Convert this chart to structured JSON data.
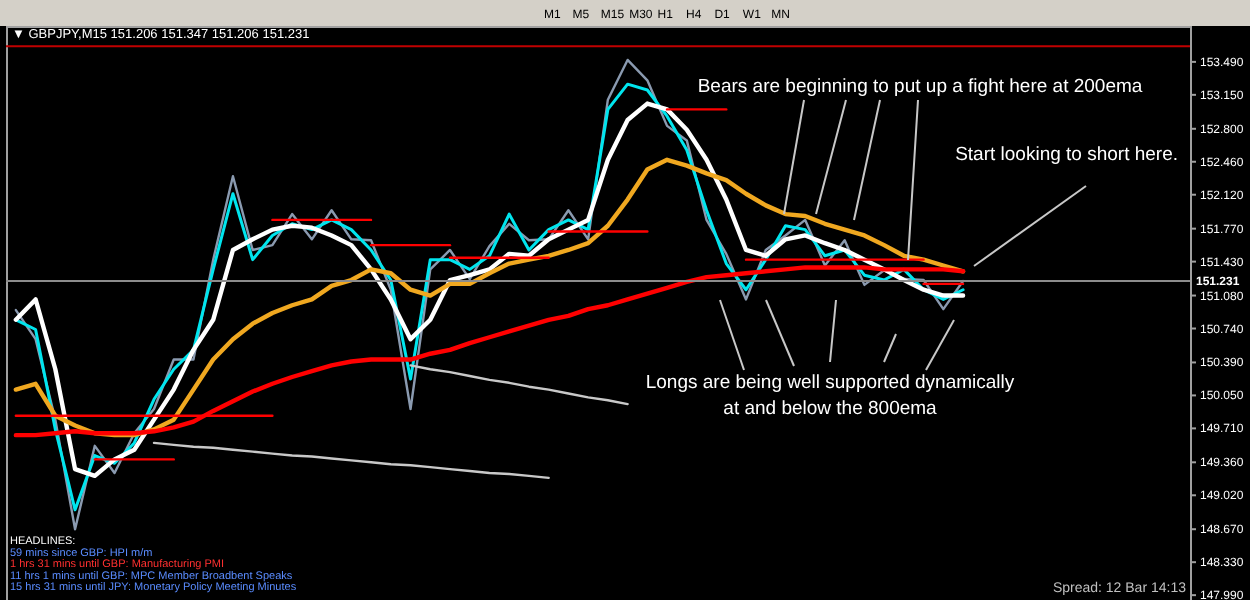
{
  "chart_data": {
    "type": "line",
    "title": "▼ GBPJPY,M15 151.206 151.347 151.206 151.231",
    "categories": [
      null,
      null,
      null,
      null,
      null,
      null,
      null,
      null,
      null,
      null,
      null,
      null,
      null,
      null,
      null,
      null,
      null,
      null,
      null,
      null,
      null,
      null,
      null,
      null,
      null,
      null,
      null,
      null,
      null,
      null,
      null,
      null,
      null,
      null,
      null,
      null,
      null,
      null,
      null,
      null,
      null,
      null,
      null,
      null,
      null,
      null,
      null,
      null,
      null,
      null,
      null,
      null,
      null,
      null,
      null,
      null,
      null,
      null,
      null,
      null
    ],
    "series": [
      {
        "color": "#8a9ab0",
        "values": [
          150.93,
          150.63,
          149.8,
          148.67,
          149.53,
          149.25,
          149.66,
          149.91,
          150.42,
          150.42,
          151.45,
          152.31,
          151.55,
          151.6,
          151.92,
          151.66,
          151.96,
          151.66,
          151.65,
          151.14,
          149.91,
          151.35,
          151.55,
          151.25,
          151.59,
          151.82,
          151.65,
          151.66,
          151.96,
          151.66,
          153.1,
          153.51,
          153.3,
          152.83,
          152.68,
          151.86,
          151.51,
          151.04,
          151.55,
          151.7,
          151.86,
          151.39,
          151.65,
          151.19,
          151.34,
          151.25,
          151.24,
          150.94,
          151.23,
          null,
          null,
          null,
          null,
          null,
          null,
          null,
          null,
          null,
          null,
          null
        ]
      },
      {
        "color": "#00e5ee",
        "values": [
          150.83,
          150.73,
          149.7,
          148.87,
          149.43,
          149.35,
          149.56,
          150.01,
          150.32,
          150.52,
          151.35,
          152.13,
          151.45,
          151.7,
          151.82,
          151.76,
          151.86,
          151.76,
          151.55,
          151.24,
          150.22,
          151.45,
          151.45,
          151.35,
          151.49,
          151.92,
          151.55,
          151.76,
          151.86,
          151.76,
          153.0,
          153.26,
          153.2,
          152.93,
          152.58,
          151.96,
          151.41,
          151.14,
          151.45,
          151.8,
          151.76,
          151.49,
          151.55,
          151.29,
          151.24,
          151.35,
          151.14,
          151.04,
          151.14,
          null,
          null,
          null,
          null,
          null,
          null,
          null,
          null,
          null,
          null,
          null
        ]
      },
      {
        "color": "#ffffff",
        "values": [
          150.83,
          151.04,
          150.32,
          149.29,
          149.22,
          149.39,
          149.49,
          149.8,
          150.11,
          150.52,
          150.83,
          151.55,
          151.66,
          151.76,
          151.8,
          151.78,
          151.7,
          151.6,
          151.35,
          151.04,
          150.63,
          150.83,
          151.24,
          151.29,
          151.35,
          151.51,
          151.49,
          151.66,
          151.76,
          151.86,
          152.48,
          152.89,
          153.06,
          153.0,
          152.79,
          152.48,
          152.07,
          151.55,
          151.49,
          151.66,
          151.7,
          151.62,
          151.55,
          151.45,
          151.35,
          151.24,
          151.14,
          151.08,
          151.08,
          null,
          null,
          null,
          null,
          null,
          null,
          null,
          null,
          null,
          null,
          null
        ]
      },
      {
        "color": "#f0a820",
        "values": [
          150.11,
          150.17,
          149.84,
          149.74,
          149.66,
          149.64,
          149.64,
          149.7,
          149.8,
          150.11,
          150.42,
          150.63,
          150.79,
          150.9,
          150.98,
          151.04,
          151.18,
          151.24,
          151.35,
          151.31,
          151.14,
          151.08,
          151.2,
          151.2,
          151.31,
          151.41,
          151.45,
          151.49,
          151.55,
          151.62,
          151.8,
          152.07,
          152.38,
          152.48,
          152.42,
          152.34,
          152.27,
          152.13,
          152.01,
          151.92,
          151.9,
          151.82,
          151.76,
          151.7,
          151.6,
          151.49,
          151.45,
          151.39,
          151.33,
          null,
          null,
          null,
          null,
          null,
          null,
          null,
          null,
          null,
          null,
          null
        ]
      },
      {
        "color": "#ff0000",
        "values": [
          149.64,
          149.64,
          149.66,
          149.68,
          149.66,
          149.66,
          149.66,
          149.68,
          149.72,
          149.78,
          149.89,
          149.99,
          150.09,
          150.17,
          150.24,
          150.3,
          150.36,
          150.4,
          150.42,
          150.42,
          150.42,
          150.48,
          150.52,
          150.59,
          150.65,
          150.71,
          150.77,
          150.83,
          150.87,
          150.94,
          150.98,
          151.04,
          151.1,
          151.16,
          151.22,
          151.27,
          151.29,
          151.31,
          151.33,
          151.35,
          151.37,
          151.37,
          151.37,
          151.37,
          151.35,
          151.35,
          151.35,
          151.35,
          151.33,
          null,
          null,
          null,
          null,
          null,
          null,
          null,
          null,
          null,
          null,
          null
        ]
      },
      {
        "color": "#ff0000",
        "values": [
          149.84,
          149.84,
          149.84,
          149.84,
          149.84,
          149.84,
          149.84,
          149.84,
          149.84,
          149.84,
          149.84,
          149.84,
          149.84,
          149.84,
          null,
          null,
          null,
          null,
          null,
          null,
          null,
          null,
          null,
          null,
          null,
          null,
          null,
          null,
          null,
          null,
          null,
          null,
          null,
          null,
          null,
          null,
          null,
          null,
          null,
          null,
          null,
          null,
          null,
          null,
          null,
          null,
          null,
          null,
          null,
          null,
          null,
          null,
          null,
          null,
          null,
          null,
          null,
          null,
          null,
          null
        ]
      },
      {
        "color": "#ff0000",
        "values": [
          null,
          null,
          null,
          null,
          149.39,
          149.39,
          149.39,
          149.39,
          149.39,
          null,
          null,
          null,
          null,
          null,
          null,
          null,
          null,
          null,
          null,
          null,
          null,
          null,
          null,
          null,
          null,
          null,
          null,
          null,
          null,
          null,
          null,
          null,
          null,
          null,
          null,
          null,
          null,
          null,
          null,
          null,
          null,
          null,
          null,
          null,
          null,
          null,
          null,
          null,
          null,
          null,
          null,
          null,
          null,
          null,
          null,
          null,
          null,
          null,
          null,
          null
        ]
      },
      {
        "color": "#ff0000",
        "values": [
          null,
          null,
          null,
          null,
          null,
          null,
          null,
          null,
          null,
          null,
          null,
          null,
          null,
          151.86,
          151.86,
          151.86,
          151.86,
          151.86,
          151.86,
          null,
          null,
          null,
          null,
          null,
          null,
          null,
          null,
          null,
          null,
          null,
          null,
          null,
          null,
          null,
          null,
          null,
          null,
          null,
          null,
          null,
          null,
          null,
          null,
          null,
          null,
          null,
          null,
          null,
          null,
          null,
          null,
          null,
          null,
          null,
          null,
          null,
          null,
          null,
          null,
          null
        ]
      },
      {
        "color": "#ff0000",
        "values": [
          null,
          null,
          null,
          null,
          null,
          null,
          null,
          null,
          null,
          null,
          null,
          null,
          null,
          null,
          null,
          null,
          null,
          null,
          151.6,
          151.6,
          151.6,
          151.6,
          151.6,
          null,
          null,
          null,
          null,
          null,
          null,
          null,
          null,
          null,
          null,
          null,
          null,
          null,
          null,
          null,
          null,
          null,
          null,
          null,
          null,
          null,
          null,
          null,
          null,
          null,
          null,
          null,
          null,
          null,
          null,
          null,
          null,
          null,
          null,
          null,
          null,
          null
        ]
      },
      {
        "color": "#ff0000",
        "values": [
          null,
          null,
          null,
          null,
          null,
          null,
          null,
          null,
          null,
          null,
          null,
          null,
          null,
          null,
          null,
          null,
          null,
          null,
          null,
          null,
          null,
          null,
          151.47,
          151.47,
          151.47,
          151.47,
          151.47,
          151.47,
          null,
          null,
          null,
          null,
          null,
          null,
          null,
          null,
          null,
          null,
          null,
          null,
          null,
          null,
          null,
          null,
          null,
          null,
          null,
          null,
          null,
          null,
          null,
          null,
          null,
          null,
          null,
          null,
          null,
          null,
          null,
          null
        ]
      },
      {
        "color": "#ff0000",
        "values": [
          null,
          null,
          null,
          null,
          null,
          null,
          null,
          null,
          null,
          null,
          null,
          null,
          null,
          null,
          null,
          null,
          null,
          null,
          null,
          null,
          null,
          null,
          null,
          null,
          null,
          null,
          null,
          151.74,
          151.74,
          151.74,
          151.74,
          151.74,
          151.74,
          null,
          null,
          null,
          null,
          null,
          null,
          null,
          null,
          null,
          null,
          null,
          null,
          null,
          null,
          null,
          null,
          null,
          null,
          null,
          null,
          null,
          null,
          null,
          null,
          null,
          null,
          null
        ]
      },
      {
        "color": "#ff0000",
        "values": [
          null,
          null,
          null,
          null,
          null,
          null,
          null,
          null,
          null,
          null,
          null,
          null,
          null,
          null,
          null,
          null,
          null,
          null,
          null,
          null,
          null,
          null,
          null,
          null,
          null,
          null,
          null,
          null,
          null,
          null,
          null,
          null,
          null,
          153.0,
          153.0,
          153.0,
          153.0,
          null,
          null,
          null,
          null,
          null,
          null,
          null,
          null,
          null,
          null,
          null,
          null,
          null,
          null,
          null,
          null,
          null,
          null,
          null,
          null,
          null,
          null,
          null
        ]
      },
      {
        "color": "#ff0000",
        "values": [
          null,
          null,
          null,
          null,
          null,
          null,
          null,
          null,
          null,
          null,
          null,
          null,
          null,
          null,
          null,
          null,
          null,
          null,
          null,
          null,
          null,
          null,
          null,
          null,
          null,
          null,
          null,
          null,
          null,
          null,
          null,
          null,
          null,
          null,
          null,
          null,
          null,
          151.45,
          151.45,
          151.45,
          151.45,
          151.45,
          151.45,
          151.45,
          151.45,
          151.45,
          151.45,
          null,
          null,
          null,
          null,
          null,
          null,
          null,
          null,
          null,
          null,
          null,
          null,
          null
        ]
      },
      {
        "color": "#ff0000",
        "values": [
          null,
          null,
          null,
          null,
          null,
          null,
          null,
          null,
          null,
          null,
          null,
          null,
          null,
          null,
          null,
          null,
          null,
          null,
          null,
          null,
          null,
          null,
          null,
          null,
          null,
          null,
          null,
          null,
          null,
          null,
          null,
          null,
          null,
          null,
          null,
          null,
          null,
          null,
          null,
          null,
          null,
          null,
          null,
          null,
          null,
          null,
          151.2,
          151.2,
          151.2,
          null,
          null,
          null,
          null,
          null,
          null,
          null,
          null,
          null,
          null,
          null
        ]
      },
      {
        "color": "#c8c8c8",
        "values": [
          null,
          null,
          null,
          null,
          null,
          null,
          null,
          null,
          null,
          null,
          null,
          null,
          null,
          null,
          null,
          null,
          null,
          null,
          null,
          null,
          150.36,
          150.32,
          150.29,
          150.25,
          150.21,
          150.18,
          150.14,
          150.11,
          150.07,
          150.03,
          150.0,
          149.96,
          null,
          null,
          null,
          null,
          null,
          null,
          null,
          null,
          null,
          null,
          null,
          null,
          null,
          null,
          null,
          null,
          null,
          null,
          null,
          null,
          null,
          null,
          null,
          null,
          null,
          null,
          null,
          null
        ]
      },
      {
        "color": "#c8c8c8",
        "values": [
          null,
          null,
          null,
          null,
          null,
          null,
          null,
          149.56,
          149.54,
          149.52,
          149.51,
          149.49,
          149.47,
          149.45,
          149.43,
          149.42,
          149.4,
          149.38,
          149.36,
          149.34,
          149.33,
          149.31,
          149.29,
          149.27,
          149.25,
          149.24,
          149.22,
          149.2,
          null,
          null,
          null,
          null,
          null,
          null,
          null,
          null,
          null,
          null,
          null,
          null,
          null,
          null,
          null,
          null,
          null,
          null,
          null,
          null,
          null,
          null,
          null,
          null,
          null,
          null,
          null,
          null,
          null,
          null,
          null,
          null
        ]
      }
    ],
    "ylim": [
      147.94,
      153.86
    ],
    "yticks": [
      {
        "value": 153.49,
        "label": "153.490"
      },
      {
        "value": 153.15,
        "label": "153.150"
      },
      {
        "value": 152.8,
        "label": "152.800"
      },
      {
        "value": 152.46,
        "label": "152.460"
      },
      {
        "value": 152.12,
        "label": "152.120"
      },
      {
        "value": 151.77,
        "label": "151.770"
      },
      {
        "value": 151.43,
        "label": "151.430"
      },
      {
        "value": 151.08,
        "label": "151.080"
      },
      {
        "value": 150.74,
        "label": "150.740"
      },
      {
        "value": 150.39,
        "label": "150.390"
      },
      {
        "value": 150.05,
        "label": "150.050"
      },
      {
        "value": 149.71,
        "label": "149.710"
      },
      {
        "value": 149.36,
        "label": "149.360"
      },
      {
        "value": 149.02,
        "label": "149.020"
      },
      {
        "value": 148.67,
        "label": "148.670"
      },
      {
        "value": 148.33,
        "label": "148.330"
      },
      {
        "value": 147.99,
        "label": "147.990"
      }
    ],
    "ref_lines": [
      {
        "axis": "y",
        "value": 151.231,
        "label": "151.231",
        "color": "#8c8c8c"
      },
      {
        "axis": "y",
        "value": 153.65,
        "color": "#c00000"
      }
    ],
    "annotations": [
      "Bears are beginning to put up a fight here at 200ema",
      "Longs are being well supported dynamically at and below the 800ema",
      "Start looking to short here.",
      "M1",
      "M5",
      "M15",
      "M30",
      "H1",
      "H4",
      "D1",
      "W1",
      "MN",
      "HEADLINES:",
      "59 mins since GBP: HPI m/m",
      "1 hrs 31 mins until GBP: Manufacturing PMI",
      "11 hrs 1 mins until GBP: MPC Member Broadbent Speaks",
      "15 hrs 31 mins until JPY: Monetary Policy Meeting Minutes",
      "Spread: 12   Bar 14:13"
    ],
    "grid": false,
    "tick_labels": "y"
  }
}
